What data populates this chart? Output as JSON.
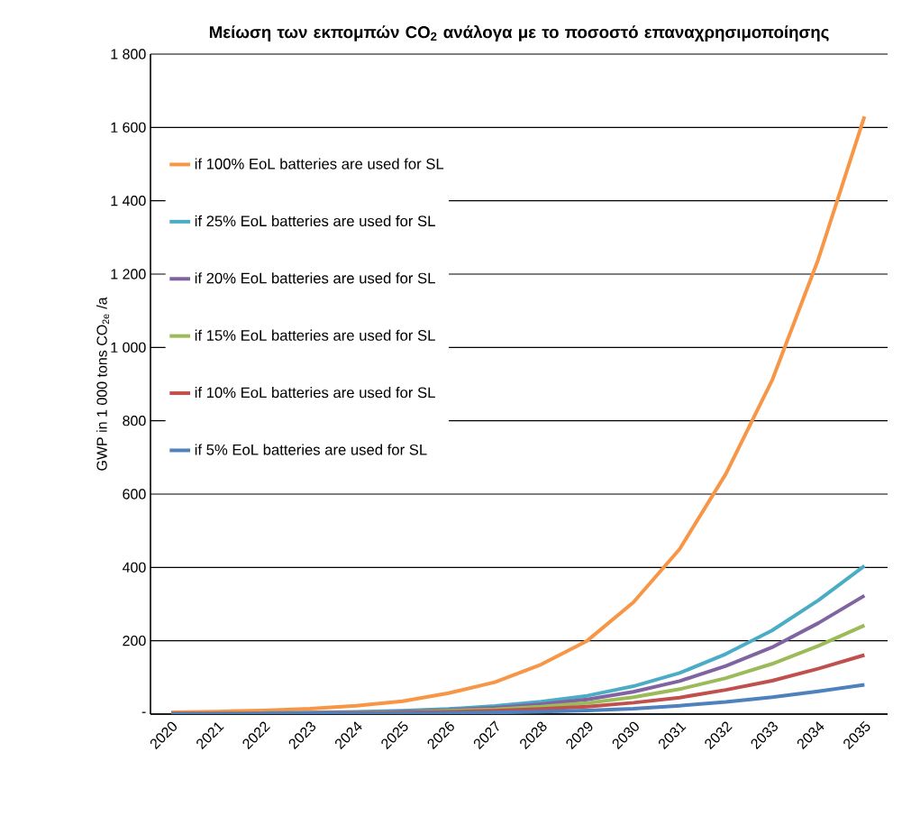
{
  "chart_data": {
    "type": "line",
    "title": "Μείωση των εκπομπών CO$_{2}$ ανάλογα με το ποσοστό επαναχρησιμοποίησης",
    "ylabel": "GWP in 1 000 tons CO$_{2e}$ /a",
    "categories": [
      "2020",
      "2021",
      "2022",
      "2023",
      "2024",
      "2025",
      "2026",
      "2027",
      "2028",
      "2029",
      "2030",
      "2031",
      "2032",
      "2033",
      "2034",
      "2035"
    ],
    "ylim": [
      0,
      1800
    ],
    "yticks": [
      {
        "value": 0,
        "label": "-"
      },
      200,
      400,
      600,
      800,
      {
        "value": 1000,
        "label": "1 000"
      },
      {
        "value": 1200,
        "label": "1 200"
      },
      {
        "value": 1400,
        "label": "1 400"
      },
      {
        "value": 1600,
        "label": "1 600"
      },
      {
        "value": 1800,
        "label": "1 800"
      }
    ],
    "grid": "y",
    "legend": "top left",
    "marker": "none",
    "line_style": "solid",
    "series": [
      {
        "name": "if 100% EoL batteries are used for SL",
        "color": "#f79646",
        "values": [
          5,
          7,
          10,
          15,
          23,
          35,
          57,
          87,
          135,
          200,
          305,
          450,
          655,
          910,
          1240,
          1630
        ]
      },
      {
        "name": "if 25% EoL batteries are used for SL",
        "color": "#4bacc6",
        "values": [
          null,
          null,
          3,
          4,
          6,
          9,
          14,
          22,
          34,
          50,
          76,
          112,
          164,
          228,
          310,
          404
        ]
      },
      {
        "name": "if 20% EoL batteries are used for SL",
        "color": "#8064a2",
        "values": [
          1,
          1,
          2,
          3,
          5,
          7,
          11,
          17,
          27,
          40,
          61,
          90,
          131,
          182,
          248,
          323
        ]
      },
      {
        "name": "if 15% EoL batteries are used for SL",
        "color": "#9bbb59",
        "values": [
          1,
          1,
          2,
          2,
          3,
          5,
          9,
          13,
          20,
          30,
          46,
          68,
          98,
          137,
          186,
          242
        ]
      },
      {
        "name": "if 10% EoL batteries are used for SL",
        "color": "#c0504d",
        "values": [
          1,
          1,
          1,
          2,
          2,
          4,
          6,
          9,
          14,
          20,
          31,
          45,
          66,
          91,
          124,
          161
        ]
      },
      {
        "name": "if 5% EoL batteries are used for SL",
        "color": "#4f81bd",
        "values": [
          0,
          0,
          1,
          1,
          1,
          2,
          3,
          4,
          7,
          10,
          15,
          23,
          33,
          46,
          62,
          80
        ]
      }
    ]
  }
}
